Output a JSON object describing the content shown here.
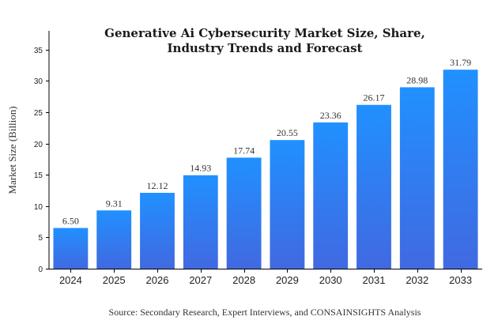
{
  "chart_data": {
    "type": "bar",
    "title_lines": [
      "Generative Ai Cybersecurity Market Size, Share,",
      "Industry Trends and Forecast"
    ],
    "xlabel": "",
    "ylabel": "Market Size (Billion)",
    "categories": [
      "2024",
      "2025",
      "2026",
      "2027",
      "2028",
      "2029",
      "2030",
      "2031",
      "2032",
      "2033"
    ],
    "values": [
      6.5,
      9.31,
      12.12,
      14.93,
      17.74,
      20.55,
      23.36,
      26.17,
      28.98,
      31.79
    ],
    "data_labels": [
      "6.50",
      "9.31",
      "12.12",
      "14.93",
      "17.74",
      "20.55",
      "23.36",
      "26.17",
      "28.98",
      "31.79"
    ],
    "ylim": [
      0,
      38
    ],
    "yticks": [
      0,
      5,
      10,
      15,
      20,
      25,
      30,
      35
    ],
    "grid": false,
    "legend": "none",
    "bar_color_top": "#2190ff",
    "bar_color_bottom": "#4169e1"
  },
  "source": "Source: Secondary Research, Expert Interviews, and CONSAINSIGHTS Analysis"
}
